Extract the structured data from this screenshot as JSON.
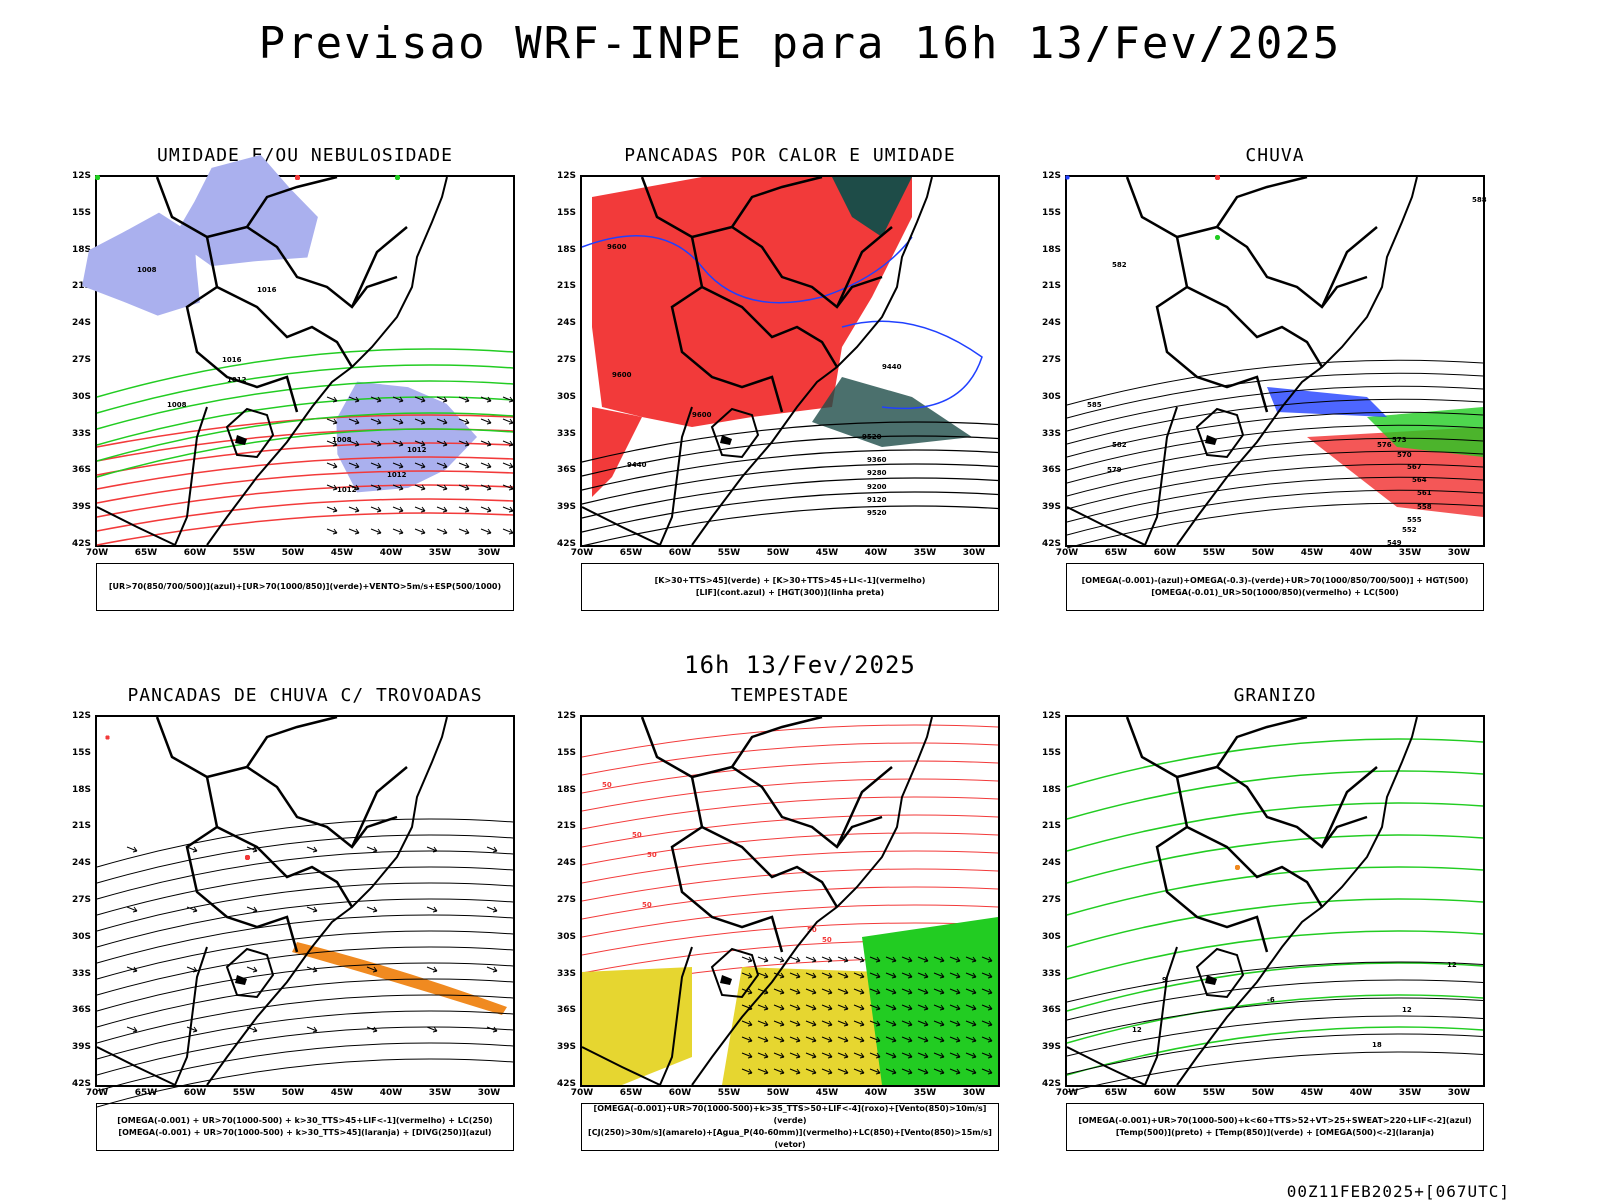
{
  "title": "Previsao WRF-INPE  para 16h 13/Fev/2025",
  "mid_date": "16h 13/Fev/2025",
  "footer": "00Z11FEB2025+[067UTC]",
  "lat_ticks": [
    "12S",
    "15S",
    "18S",
    "21S",
    "24S",
    "27S",
    "30S",
    "33S",
    "36S",
    "39S",
    "42S"
  ],
  "lon_ticks": [
    "70W",
    "65W",
    "60W",
    "55W",
    "50W",
    "45W",
    "40W",
    "35W",
    "30W"
  ],
  "colors": {
    "red": "#f23a3a",
    "green": "#22cc22",
    "blue": "#2040ff",
    "lavender": "#aab0ee",
    "yellow": "#e6d630",
    "orange": "#f08a20",
    "teal": "#1e4c48"
  },
  "panels": [
    {
      "title": "UMIDADE E/OU NEBULOSIDADE",
      "legend": [
        "[UR>70(850/700/500)](azul)+[UR>70(1000/850)](verde)+VENTO>5m/s+ESP(500/1000)"
      ],
      "contour_labels": [
        "1008",
        "1012",
        "1016",
        "1008",
        "1012",
        "1012",
        "1016",
        "1008",
        "1012"
      ]
    },
    {
      "title": "PANCADAS POR CALOR E UMIDADE",
      "legend": [
        "[K>30+TTS>45](verde) + [K>30+TTS>45+LI<-1](vermelho)",
        "[LIF](cont.azul) + [HGT(300)](linha preta)"
      ],
      "contour_labels": [
        "9600",
        "9600",
        "9600",
        "9520",
        "9440",
        "9360",
        "9280",
        "9200",
        "9120",
        "9520",
        "9440"
      ]
    },
    {
      "title": "CHUVA",
      "legend": [
        "[OMEGA(-0.001)-(azul)+OMEGA(-0.3)-(verde)+UR>70(1000/850/700/500)] + HGT(500)",
        "[OMEGA(-0.01)_UR>50(1000/850)(vermelho) + LC(500)"
      ],
      "contour_labels": [
        "588",
        "582",
        "585",
        "582",
        "579",
        "576",
        "573",
        "570",
        "567",
        "564",
        "561",
        "558",
        "555",
        "552",
        "549"
      ]
    },
    {
      "title": "PANCADAS DE CHUVA C/ TROVOADAS",
      "legend": [
        "[OMEGA(-0.001) + UR>70(1000-500) + k>30_TTS>45+LIF<-1](vermelho) + LC(250)",
        "[OMEGA(-0.001) + UR>70(1000-500) + k>30_TTS>45](laranja) + [DIVG(250)](azul)"
      ],
      "contour_labels": []
    },
    {
      "title": "TEMPESTADE",
      "legend": [
        "[OMEGA(-0.001)+UR>70(1000-500)+k>35_TTS>50+LIF<-4](roxo)+[Vento(850)>10m/s](verde)",
        "[CJ(250)>30m/s](amarelo)+[Agua_P(40-60mm)](vermelho)+LC(850)+[Vento(850)>15m/s](vetor)"
      ],
      "contour_labels": [
        "50",
        "50",
        "50",
        "50",
        "50",
        "50"
      ]
    },
    {
      "title": "GRANIZO",
      "legend": [
        "[OMEGA(-0.001)+UR>70(1000-500)+k<60+TTS>52+VT>25+SWEAT>220+LIF<-2](azul)",
        "[Temp(500)](preto) + [Temp(850)](verde) + [OMEGA(500)<-2](laranja)"
      ],
      "contour_labels": [
        "12",
        "12",
        "18",
        "9",
        "12",
        "-6"
      ]
    }
  ]
}
